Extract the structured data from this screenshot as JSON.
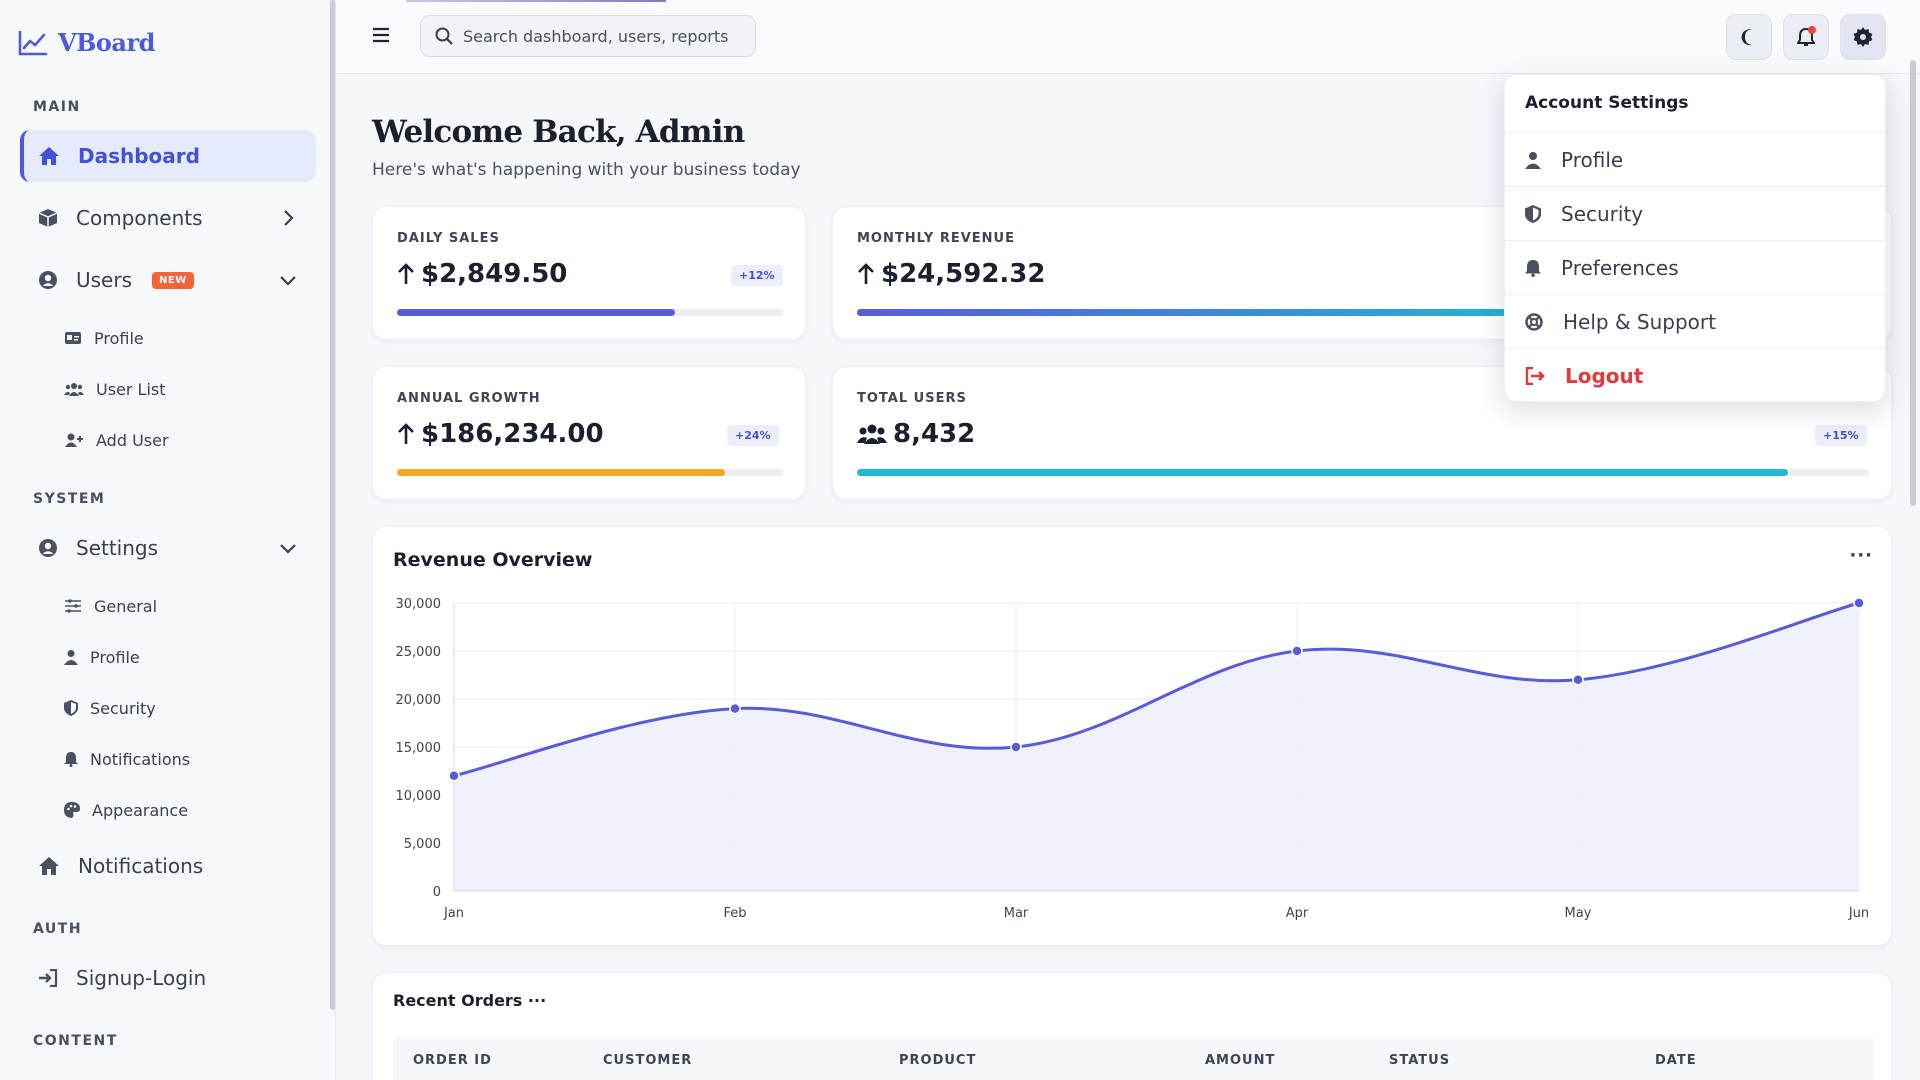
{
  "brand": {
    "name": "VBoard",
    "accent": "#4e59dd"
  },
  "sidebar": {
    "sections": {
      "main": "MAIN",
      "system": "SYSTEM",
      "auth": "AUTH",
      "content": "CONTENT"
    },
    "items": {
      "dashboard": {
        "label": "Dashboard",
        "icon": "home-icon",
        "active": true
      },
      "components": {
        "label": "Components",
        "icon": "cube-icon"
      },
      "users": {
        "label": "Users",
        "icon": "user-circle-icon",
        "badge": "NEW"
      },
      "settings": {
        "label": "Settings",
        "icon": "user-circle-icon"
      },
      "notifications": {
        "label": "Notifications",
        "icon": "home-icon"
      },
      "signup": {
        "label": "Signup-Login",
        "icon": "sign-in-icon"
      }
    },
    "users_sub": [
      {
        "label": "Profile",
        "icon": "id-card-icon"
      },
      {
        "label": "User List",
        "icon": "users-icon"
      },
      {
        "label": "Add User",
        "icon": "user-plus-icon"
      }
    ],
    "settings_sub": [
      {
        "label": "General",
        "icon": "sliders-icon"
      },
      {
        "label": "Profile",
        "icon": "user-icon"
      },
      {
        "label": "Security",
        "icon": "shield-icon"
      },
      {
        "label": "Notifications",
        "icon": "bell-icon"
      },
      {
        "label": "Appearance",
        "icon": "palette-icon"
      }
    ]
  },
  "topbar": {
    "search_placeholder": "Search dashboard, users, reports",
    "buttons": [
      "moon-icon",
      "bell-icon",
      "gear-icon"
    ]
  },
  "welcome": {
    "title": "Welcome Back, Admin",
    "subtitle": "Here's what's happening with your business today"
  },
  "stats": {
    "daily": {
      "label": "DAILY SALES",
      "value": "$2,849.50",
      "badge": "+12%",
      "progress": 0.72,
      "color": "#5a5bd9"
    },
    "monthly": {
      "label": "MONTHLY REVENUE",
      "value": "$24,592.32",
      "progress": 0.7,
      "color": "#3b82f6"
    },
    "annual": {
      "label": "ANNUAL GROWTH",
      "value": "$186,234.00",
      "badge": "+24%",
      "progress": 0.85,
      "color": "#f5a623"
    },
    "users": {
      "label": "TOTAL USERS",
      "value": "8,432",
      "badge": "+15%",
      "progress": 0.92,
      "color": "#22b8d6"
    }
  },
  "chart": {
    "title": "Revenue Overview",
    "menu": "···"
  },
  "chart_data": {
    "type": "area",
    "title": "Revenue Overview",
    "categories": [
      "Jan",
      "Feb",
      "Mar",
      "Apr",
      "May",
      "Jun"
    ],
    "series": [
      {
        "values": [
          12000,
          19000,
          15000,
          25000,
          22000,
          30000
        ]
      }
    ],
    "ylim": [
      0,
      30000
    ],
    "yticks": [
      "0",
      "5,000",
      "10,000",
      "15,000",
      "20,000",
      "25,000",
      "30,000"
    ],
    "grid": true,
    "color": "#5a5bd9",
    "fill": "#efeefd"
  },
  "orders": {
    "title": "Recent Orders",
    "menu": "···",
    "columns": [
      "ORDER ID",
      "CUSTOMER",
      "PRODUCT",
      "AMOUNT",
      "STATUS",
      "DATE"
    ]
  },
  "dropdown": {
    "title": "Account Settings",
    "items": [
      {
        "label": "Profile",
        "icon": "user-icon"
      },
      {
        "label": "Security",
        "icon": "shield-icon"
      },
      {
        "label": "Preferences",
        "icon": "bell-icon"
      },
      {
        "label": "Help & Support",
        "icon": "life-ring-icon"
      },
      {
        "label": "Logout",
        "icon": "sign-out-icon"
      }
    ]
  }
}
